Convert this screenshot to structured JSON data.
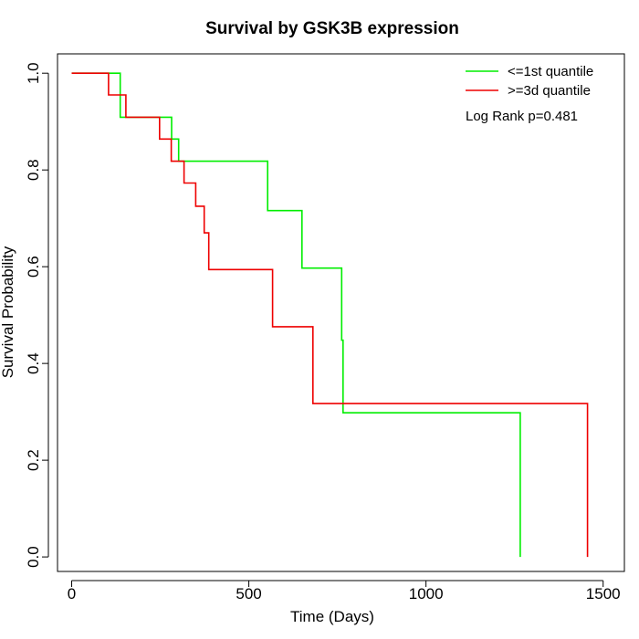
{
  "chart_data": {
    "type": "line",
    "title": "Survival by GSK3B expression",
    "xlabel": "Time (Days)",
    "ylabel": "Survival Probability",
    "xlim": [
      -40,
      1560
    ],
    "ylim": [
      -0.03,
      1.04
    ],
    "xticks": [
      0,
      500,
      1000,
      1500
    ],
    "yticks": [
      0.0,
      0.2,
      0.4,
      0.6,
      0.8,
      1.0
    ],
    "xtick_labels": [
      "0",
      "500",
      "1000",
      "1500"
    ],
    "ytick_labels": [
      "0.0",
      "0.2",
      "0.4",
      "0.6",
      "0.8",
      "1.0"
    ],
    "grid": false,
    "legend_position": "top-right",
    "annotation": "Log Rank p=0.481",
    "series": [
      {
        "name": "<=1st quantile",
        "color": "#00ee00",
        "step": [
          [
            0,
            1.0
          ],
          [
            137,
            1.0
          ],
          [
            137,
            0.909
          ],
          [
            282,
            0.909
          ],
          [
            282,
            0.864
          ],
          [
            302,
            0.864
          ],
          [
            302,
            0.818
          ],
          [
            553,
            0.818
          ],
          [
            553,
            0.716
          ],
          [
            650,
            0.716
          ],
          [
            650,
            0.597
          ],
          [
            762,
            0.597
          ],
          [
            762,
            0.448
          ],
          [
            766,
            0.448
          ],
          [
            766,
            0.298
          ],
          [
            1266,
            0.298
          ],
          [
            1266,
            0.0
          ]
        ]
      },
      {
        "name": ">=3d quantile",
        "color": "#ee0000",
        "step": [
          [
            0,
            1.0
          ],
          [
            104,
            1.0
          ],
          [
            104,
            0.955
          ],
          [
            153,
            0.955
          ],
          [
            153,
            0.909
          ],
          [
            248,
            0.909
          ],
          [
            248,
            0.864
          ],
          [
            281,
            0.864
          ],
          [
            281,
            0.818
          ],
          [
            317,
            0.818
          ],
          [
            317,
            0.773
          ],
          [
            350,
            0.773
          ],
          [
            350,
            0.725
          ],
          [
            374,
            0.725
          ],
          [
            374,
            0.67
          ],
          [
            387,
            0.67
          ],
          [
            387,
            0.594
          ],
          [
            567,
            0.594
          ],
          [
            567,
            0.476
          ],
          [
            681,
            0.476
          ],
          [
            681,
            0.317
          ],
          [
            1456,
            0.317
          ],
          [
            1456,
            0.0
          ]
        ]
      }
    ]
  }
}
